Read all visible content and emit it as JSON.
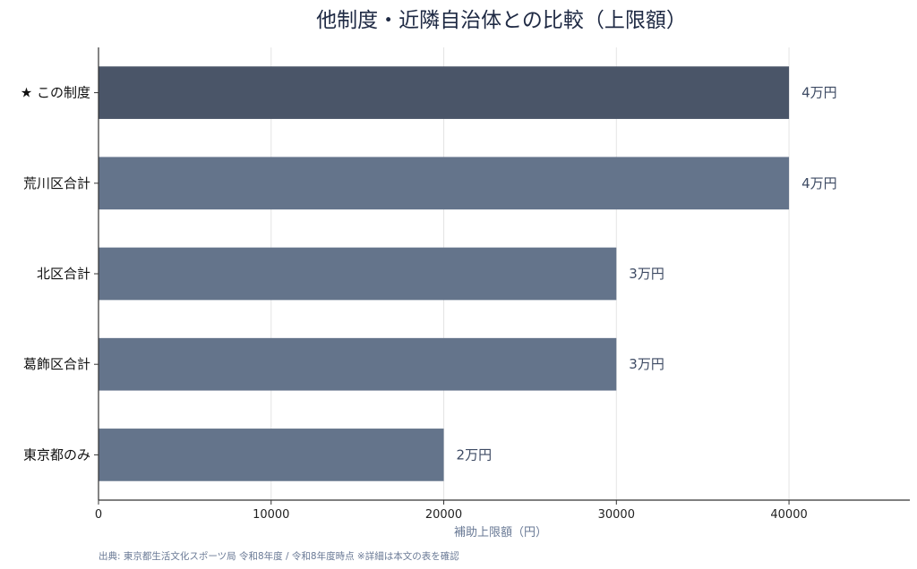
{
  "chart_data": {
    "type": "bar",
    "orientation": "horizontal",
    "title": "他制度・近隣自治体との比較（上限額）",
    "xlabel": "補助上限額（円）",
    "ylabel": "",
    "categories": [
      "★ この制度",
      "荒川区合計",
      "北区合計",
      "葛飾区合計",
      "東京都のみ"
    ],
    "values": [
      40000,
      40000,
      30000,
      30000,
      20000
    ],
    "value_labels": [
      "4万円",
      "4万円",
      "3万円",
      "3万円",
      "2万円"
    ],
    "xlim": [
      0,
      47000
    ],
    "xticks": [
      0,
      10000,
      20000,
      30000,
      40000
    ],
    "grid": true,
    "highlight_index": 0,
    "colors": {
      "highlight": "#4a5568",
      "bar": "#64748b",
      "value_text": "#3d4a63",
      "axis": "#333333",
      "grid": "#e4e4e4"
    },
    "source": "出典: 東京都生活文化スポーツ局 令和8年度 / 令和8年度時点 ※詳細は本文の表を確認"
  }
}
